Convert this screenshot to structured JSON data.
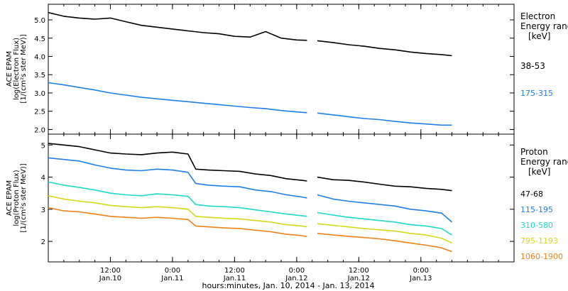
{
  "chart_data": [
    {
      "type": "line",
      "panel": "electron",
      "ylabel_lines": [
        "ACE EPAM",
        "log(Electron Flux)",
        "[1/(cm²s ster MeV)]"
      ],
      "ylim": [
        1.95,
        5.35
      ],
      "yticks": [
        2.0,
        2.5,
        3.0,
        3.5,
        4.0,
        4.5,
        5.0
      ],
      "ytick_labels": [
        "2.0",
        "2.5",
        "3.0",
        "3.5",
        "4.0",
        "4.5",
        "5.0"
      ],
      "legend_title_lines": [
        "Electron",
        "Energy ranges",
        "[keV]"
      ],
      "series": [
        {
          "name": "38-53",
          "color": "#000000",
          "points": [
            [
              0.0,
              5.2
            ],
            [
              3,
              5.1
            ],
            [
              6,
              5.05
            ],
            [
              9,
              5.02
            ],
            [
              12,
              5.05
            ],
            [
              15,
              4.95
            ],
            [
              18,
              4.85
            ],
            [
              21,
              4.8
            ],
            [
              24,
              4.75
            ],
            [
              27,
              4.7
            ],
            [
              30,
              4.65
            ],
            [
              33,
              4.62
            ],
            [
              36,
              4.55
            ],
            [
              39,
              4.53
            ],
            [
              42,
              4.68
            ],
            [
              45,
              4.5
            ],
            [
              48,
              4.45
            ],
            [
              50,
              4.44
            ],
            null,
            [
              52,
              4.43
            ],
            [
              55,
              4.38
            ],
            [
              58,
              4.32
            ],
            [
              61,
              4.28
            ],
            [
              64,
              4.22
            ],
            [
              67,
              4.18
            ],
            [
              70,
              4.12
            ],
            [
              73,
              4.08
            ],
            [
              76,
              4.05
            ],
            [
              78,
              4.02
            ]
          ]
        },
        {
          "name": "175-315",
          "color": "#1f7fe6",
          "points": [
            [
              0.0,
              3.28
            ],
            [
              3,
              3.22
            ],
            [
              6,
              3.15
            ],
            [
              9,
              3.08
            ],
            [
              12,
              3.0
            ],
            [
              15,
              2.94
            ],
            [
              18,
              2.88
            ],
            [
              21,
              2.84
            ],
            [
              24,
              2.8
            ],
            [
              27,
              2.76
            ],
            [
              30,
              2.72
            ],
            [
              33,
              2.68
            ],
            [
              36,
              2.64
            ],
            [
              39,
              2.6
            ],
            [
              42,
              2.57
            ],
            [
              45,
              2.52
            ],
            [
              48,
              2.48
            ],
            [
              50,
              2.46
            ],
            null,
            [
              52,
              2.45
            ],
            [
              55,
              2.4
            ],
            [
              58,
              2.35
            ],
            [
              61,
              2.3
            ],
            [
              64,
              2.27
            ],
            [
              67,
              2.22
            ],
            [
              70,
              2.18
            ],
            [
              73,
              2.15
            ],
            [
              76,
              2.12
            ],
            [
              78,
              2.12
            ]
          ]
        }
      ]
    },
    {
      "type": "line",
      "panel": "proton",
      "ylabel_lines": [
        "ACE EPAM",
        "log(Proton Flux)",
        "[1/(cm²s ster MeV)]"
      ],
      "ylim": [
        1.45,
        5.25
      ],
      "yticks": [
        2,
        3,
        4,
        5
      ],
      "ytick_labels": [
        "2",
        "3",
        "4",
        "5"
      ],
      "legend_title_lines": [
        "Proton",
        "Energy ranges",
        "[keV]"
      ],
      "series": [
        {
          "name": "47-68",
          "color": "#000000",
          "points": [
            [
              0.0,
              5.05
            ],
            [
              3,
              5.0
            ],
            [
              6,
              4.95
            ],
            [
              9,
              4.85
            ],
            [
              12,
              4.75
            ],
            [
              15,
              4.72
            ],
            [
              18,
              4.7
            ],
            [
              21,
              4.75
            ],
            [
              24,
              4.78
            ],
            [
              27,
              4.72
            ],
            [
              28.5,
              4.25
            ],
            [
              31,
              4.22
            ],
            [
              34,
              4.2
            ],
            [
              37,
              4.18
            ],
            [
              40,
              4.1
            ],
            [
              43,
              4.05
            ],
            [
              46,
              3.95
            ],
            [
              49,
              3.9
            ],
            [
              50,
              3.88
            ],
            null,
            [
              52,
              4.0
            ],
            [
              55,
              3.92
            ],
            [
              58,
              3.9
            ],
            [
              61,
              3.85
            ],
            [
              64,
              3.78
            ],
            [
              67,
              3.72
            ],
            [
              70,
              3.7
            ],
            [
              73,
              3.65
            ],
            [
              76,
              3.62
            ],
            [
              78,
              3.58
            ]
          ]
        },
        {
          "name": "115-195",
          "color": "#1f7fe6",
          "points": [
            [
              0.0,
              4.6
            ],
            [
              3,
              4.55
            ],
            [
              6,
              4.5
            ],
            [
              9,
              4.38
            ],
            [
              12,
              4.28
            ],
            [
              15,
              4.22
            ],
            [
              18,
              4.2
            ],
            [
              21,
              4.25
            ],
            [
              24,
              4.22
            ],
            [
              27,
              4.15
            ],
            [
              28.5,
              3.8
            ],
            [
              31,
              3.75
            ],
            [
              34,
              3.72
            ],
            [
              37,
              3.7
            ],
            [
              40,
              3.6
            ],
            [
              43,
              3.55
            ],
            [
              46,
              3.45
            ],
            [
              49,
              3.38
            ],
            [
              50,
              3.35
            ],
            null,
            [
              52,
              3.45
            ],
            [
              55,
              3.32
            ],
            [
              58,
              3.25
            ],
            [
              61,
              3.2
            ],
            [
              64,
              3.15
            ],
            [
              67,
              3.1
            ],
            [
              70,
              3.0
            ],
            [
              73,
              2.95
            ],
            [
              76,
              2.88
            ],
            [
              78,
              2.6
            ]
          ]
        },
        {
          "name": "310-580",
          "color": "#1fd9c8",
          "points": [
            [
              0.0,
              3.85
            ],
            [
              3,
              3.75
            ],
            [
              6,
              3.68
            ],
            [
              9,
              3.6
            ],
            [
              12,
              3.5
            ],
            [
              15,
              3.45
            ],
            [
              18,
              3.42
            ],
            [
              21,
              3.48
            ],
            [
              24,
              3.45
            ],
            [
              27,
              3.4
            ],
            [
              28.5,
              3.15
            ],
            [
              31,
              3.1
            ],
            [
              34,
              3.08
            ],
            [
              37,
              3.05
            ],
            [
              40,
              2.98
            ],
            [
              43,
              2.92
            ],
            [
              46,
              2.85
            ],
            [
              49,
              2.8
            ],
            [
              50,
              2.78
            ],
            null,
            [
              52,
              2.9
            ],
            [
              55,
              2.82
            ],
            [
              58,
              2.75
            ],
            [
              61,
              2.7
            ],
            [
              64,
              2.65
            ],
            [
              67,
              2.6
            ],
            [
              70,
              2.52
            ],
            [
              73,
              2.48
            ],
            [
              76,
              2.4
            ],
            [
              78,
              2.2
            ]
          ]
        },
        {
          "name": "795-1193",
          "color": "#d7d71a",
          "points": [
            [
              0.0,
              3.42
            ],
            [
              3,
              3.32
            ],
            [
              6,
              3.25
            ],
            [
              9,
              3.2
            ],
            [
              12,
              3.12
            ],
            [
              15,
              3.08
            ],
            [
              18,
              3.05
            ],
            [
              21,
              3.08
            ],
            [
              24,
              3.05
            ],
            [
              27,
              3.0
            ],
            [
              28.5,
              2.78
            ],
            [
              31,
              2.75
            ],
            [
              34,
              2.72
            ],
            [
              37,
              2.7
            ],
            [
              40,
              2.65
            ],
            [
              43,
              2.6
            ],
            [
              46,
              2.52
            ],
            [
              49,
              2.48
            ],
            [
              50,
              2.45
            ],
            null,
            [
              52,
              2.55
            ],
            [
              55,
              2.5
            ],
            [
              58,
              2.45
            ],
            [
              61,
              2.4
            ],
            [
              64,
              2.36
            ],
            [
              67,
              2.32
            ],
            [
              70,
              2.25
            ],
            [
              73,
              2.2
            ],
            [
              76,
              2.1
            ],
            [
              78,
              1.95
            ]
          ]
        },
        {
          "name": "1060-1900",
          "color": "#f08018",
          "points": [
            [
              0.0,
              3.05
            ],
            [
              3,
              2.95
            ],
            [
              6,
              2.92
            ],
            [
              9,
              2.85
            ],
            [
              12,
              2.78
            ],
            [
              15,
              2.75
            ],
            [
              18,
              2.72
            ],
            [
              21,
              2.75
            ],
            [
              24,
              2.72
            ],
            [
              27,
              2.68
            ],
            [
              28.5,
              2.48
            ],
            [
              31,
              2.45
            ],
            [
              34,
              2.42
            ],
            [
              37,
              2.4
            ],
            [
              40,
              2.35
            ],
            [
              43,
              2.3
            ],
            [
              46,
              2.22
            ],
            [
              49,
              2.18
            ],
            [
              50,
              2.15
            ],
            null,
            [
              52,
              2.25
            ],
            [
              55,
              2.2
            ],
            [
              58,
              2.16
            ],
            [
              61,
              2.12
            ],
            [
              64,
              2.08
            ],
            [
              67,
              2.02
            ],
            [
              70,
              1.95
            ],
            [
              73,
              1.88
            ],
            [
              76,
              1.8
            ],
            [
              78,
              1.68
            ]
          ]
        }
      ]
    }
  ],
  "x_axis": {
    "range_hours": [
      0,
      90
    ],
    "major_ticks_hours": [
      12,
      24,
      36,
      48,
      60,
      72
    ],
    "minor_ticks_hours": [
      0,
      3,
      6,
      9,
      12,
      15,
      18,
      21,
      24,
      27,
      30,
      33,
      36,
      39,
      42,
      45,
      48,
      51,
      54,
      57,
      60,
      63,
      66,
      69,
      72,
      75,
      78,
      81,
      84,
      87,
      90
    ],
    "tick_labels": [
      {
        "time": "12:00",
        "date": "Jan.10"
      },
      {
        "time": "0:00",
        "date": "Jan.11"
      },
      {
        "time": "12:00",
        "date": "Jan.11"
      },
      {
        "time": "0:00",
        "date": "Jan.12"
      },
      {
        "time": "12:00",
        "date": "Jan.12"
      },
      {
        "time": "0:00",
        "date": "Jan.13"
      }
    ],
    "title": "hours:minutes, Jan. 10, 2014 - Jan. 13, 2014"
  }
}
